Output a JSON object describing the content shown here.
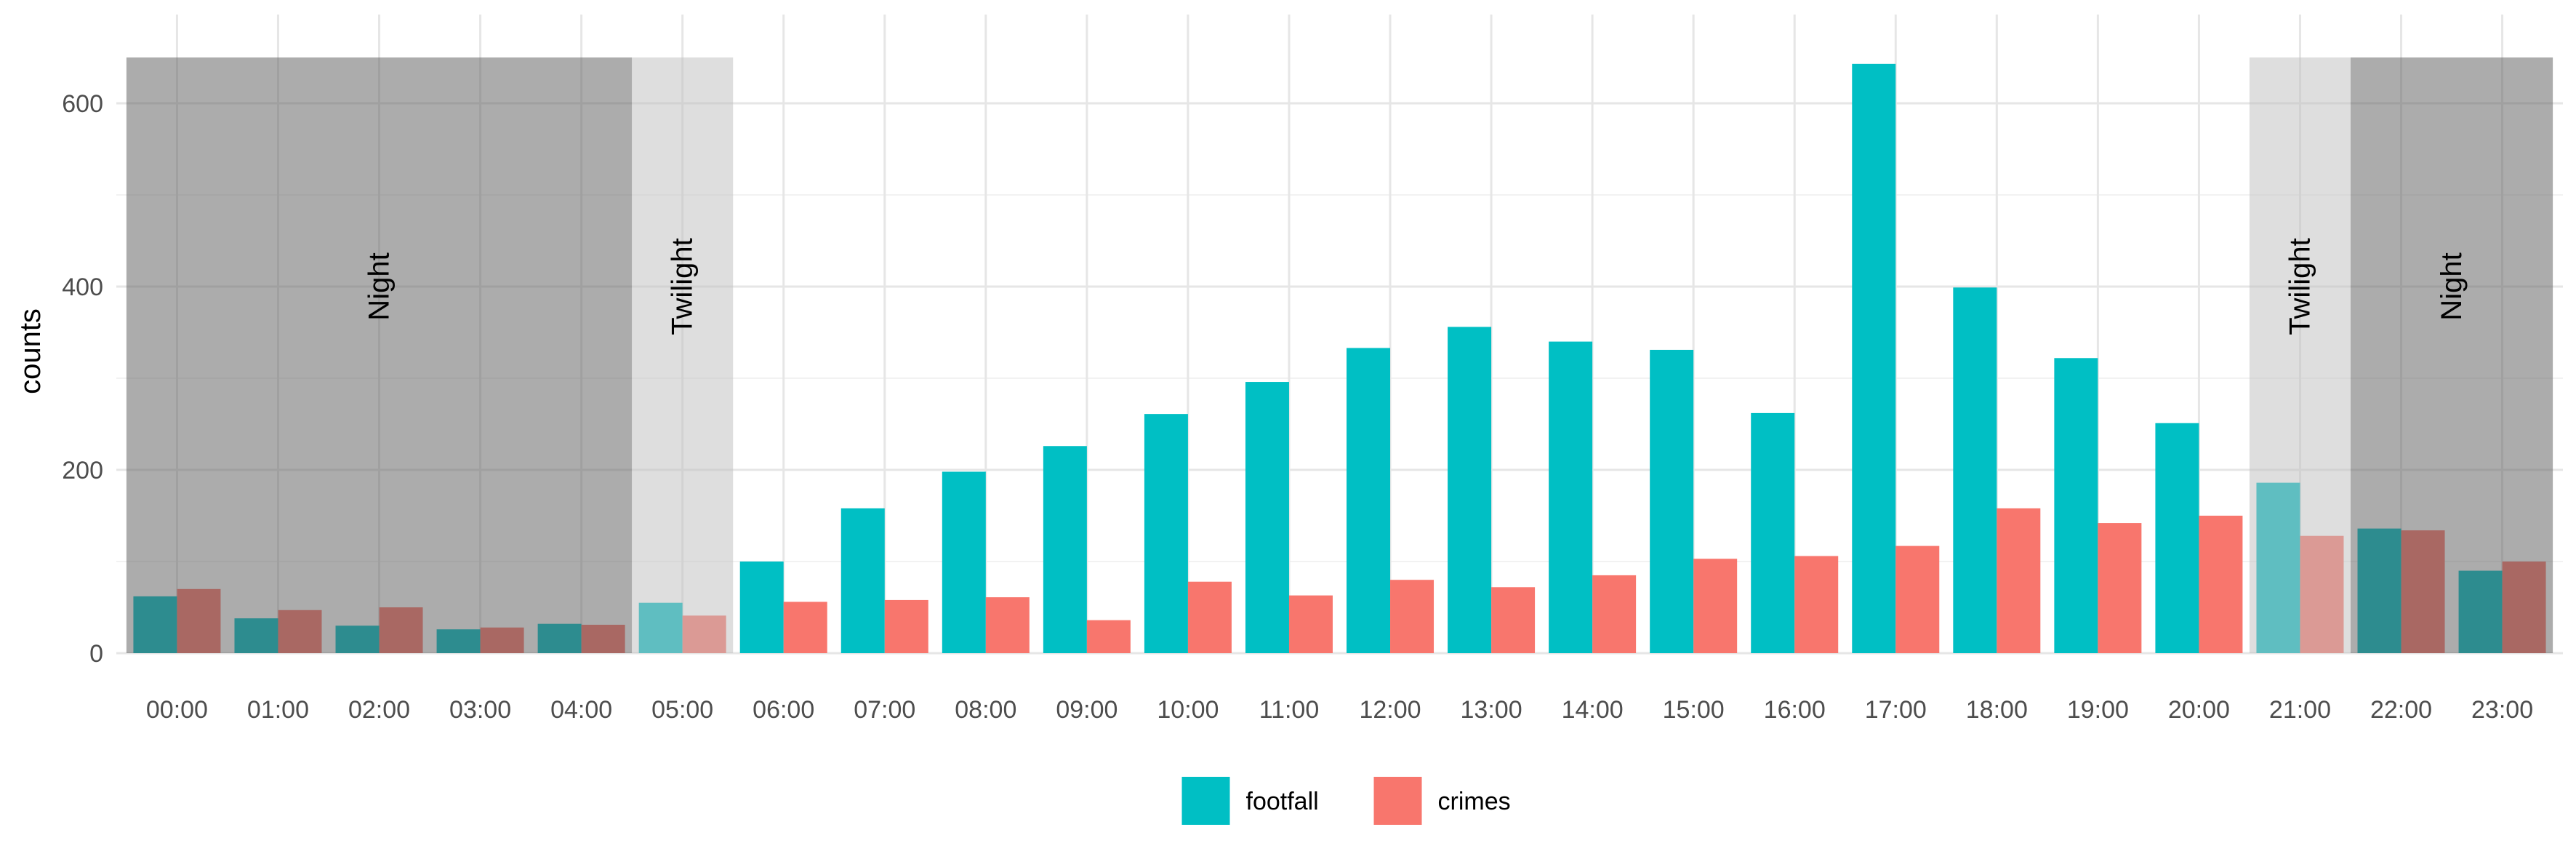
{
  "chart_data": {
    "type": "bar",
    "title": "",
    "xlabel": "",
    "ylabel": "counts",
    "ylim": [
      0,
      650
    ],
    "yticks": [
      0,
      200,
      400,
      600
    ],
    "grid": true,
    "legend_position": "bottom",
    "categories": [
      "00:00",
      "01:00",
      "02:00",
      "03:00",
      "04:00",
      "05:00",
      "06:00",
      "07:00",
      "08:00",
      "09:00",
      "10:00",
      "11:00",
      "12:00",
      "13:00",
      "14:00",
      "15:00",
      "16:00",
      "17:00",
      "18:00",
      "19:00",
      "20:00",
      "21:00",
      "22:00",
      "23:00"
    ],
    "series": [
      {
        "name": "footfall",
        "color": "#00BFC4",
        "values": [
          62,
          38,
          30,
          26,
          32,
          55,
          100,
          158,
          198,
          226,
          261,
          296,
          333,
          356,
          340,
          331,
          262,
          643,
          399,
          322,
          251,
          186,
          136,
          90
        ]
      },
      {
        "name": "crimes",
        "color": "#F8766D",
        "values": [
          70,
          47,
          50,
          28,
          31,
          41,
          56,
          58,
          61,
          36,
          78,
          63,
          80,
          72,
          85,
          103,
          106,
          117,
          158,
          142,
          150,
          128,
          134,
          100
        ]
      }
    ],
    "regions": [
      {
        "label": "Night",
        "from": "00:00",
        "to": "04:00",
        "shade": "#595959",
        "opacity": 0.5
      },
      {
        "label": "Twilight",
        "from": "05:00",
        "to": "05:00",
        "shade": "#bdbdbd",
        "opacity": 0.5
      },
      {
        "label": "Twilight",
        "from": "21:00",
        "to": "21:00",
        "shade": "#bdbdbd",
        "opacity": 0.5
      },
      {
        "label": "Night",
        "from": "22:00",
        "to": "23:00",
        "shade": "#595959",
        "opacity": 0.5
      }
    ],
    "region_label_value": 400
  }
}
